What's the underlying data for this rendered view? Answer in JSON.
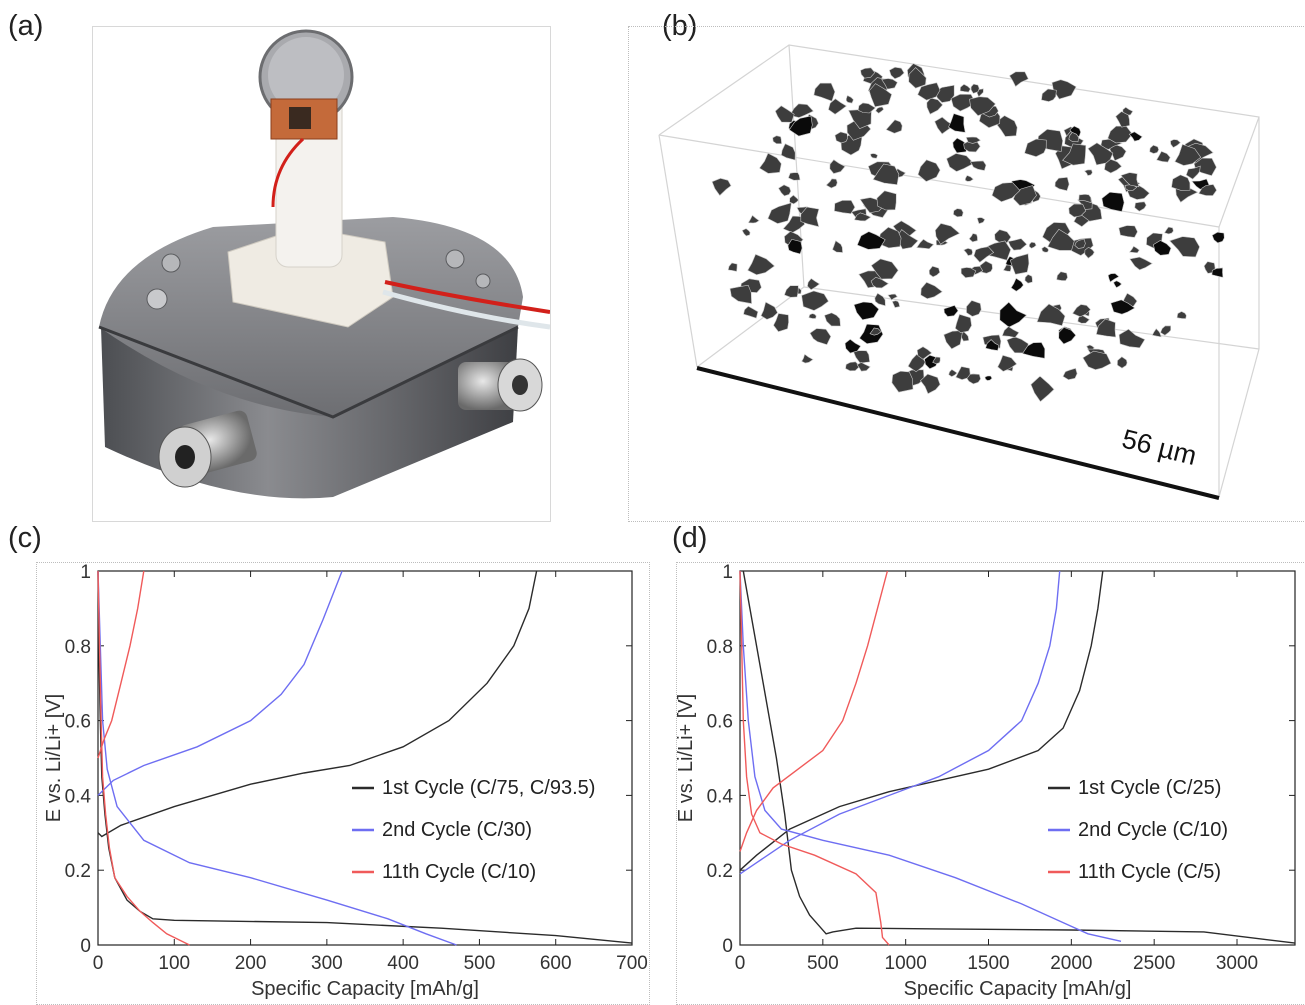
{
  "panels": {
    "a": {
      "label": "(a)"
    },
    "b": {
      "label": "(b)",
      "scale_text": "56 µm"
    },
    "c": {
      "label": "(c)"
    },
    "d": {
      "label": "(d)"
    }
  },
  "colors": {
    "black": "#2b2b2b",
    "blue": "#6e6ef2",
    "red": "#f05a5a"
  },
  "chart_data": [
    {
      "panel": "c",
      "type": "line",
      "xlabel": "Specific Capacity [mAh/g]",
      "ylabel": "E vs. Li/Li+ [V]",
      "xlim": [
        0,
        700
      ],
      "ylim": [
        0,
        1
      ],
      "xticks": [
        "0",
        "100",
        "200",
        "300",
        "400",
        "500",
        "600",
        "700"
      ],
      "yticks": [
        "0",
        "0.2",
        "0.4",
        "0.6",
        "0.8",
        "1"
      ],
      "legend_position": "center-right",
      "series": [
        {
          "name": "1st Cycle (C/75, C/93.5)",
          "color": "#2b2b2b",
          "discharge": [
            [
              0,
              1
            ],
            [
              1,
              0.8
            ],
            [
              3,
              0.6
            ],
            [
              5,
              0.45
            ],
            [
              9,
              0.35
            ],
            [
              14,
              0.26
            ],
            [
              22,
              0.18
            ],
            [
              38,
              0.12
            ],
            [
              55,
              0.09
            ],
            [
              72,
              0.07
            ],
            [
              100,
              0.066
            ],
            [
              300,
              0.06
            ],
            [
              450,
              0.045
            ],
            [
              600,
              0.025
            ],
            [
              700,
              0.005
            ]
          ],
          "charge": [
            [
              0,
              0.3
            ],
            [
              5,
              0.29
            ],
            [
              30,
              0.32
            ],
            [
              100,
              0.37
            ],
            [
              200,
              0.43
            ],
            [
              270,
              0.46
            ],
            [
              330,
              0.48
            ],
            [
              400,
              0.53
            ],
            [
              460,
              0.6
            ],
            [
              510,
              0.7
            ],
            [
              545,
              0.8
            ],
            [
              565,
              0.9
            ],
            [
              575,
              1.0
            ]
          ]
        },
        {
          "name": "2nd Cycle (C/30)",
          "color": "#6e6ef2",
          "discharge": [
            [
              0,
              1
            ],
            [
              3,
              0.8
            ],
            [
              6,
              0.6
            ],
            [
              12,
              0.47
            ],
            [
              25,
              0.37
            ],
            [
              60,
              0.28
            ],
            [
              120,
              0.22
            ],
            [
              200,
              0.18
            ],
            [
              300,
              0.12
            ],
            [
              380,
              0.07
            ],
            [
              430,
              0.03
            ],
            [
              470,
              0
            ]
          ],
          "charge": [
            [
              0,
              0.4
            ],
            [
              20,
              0.44
            ],
            [
              60,
              0.48
            ],
            [
              130,
              0.53
            ],
            [
              200,
              0.6
            ],
            [
              240,
              0.67
            ],
            [
              270,
              0.75
            ],
            [
              295,
              0.87
            ],
            [
              320,
              1.0
            ]
          ]
        },
        {
          "name": "11th Cycle (C/10)",
          "color": "#f05a5a",
          "discharge": [
            [
              0,
              1
            ],
            [
              2,
              0.8
            ],
            [
              4,
              0.6
            ],
            [
              6,
              0.45
            ],
            [
              10,
              0.35
            ],
            [
              15,
              0.26
            ],
            [
              22,
              0.18
            ],
            [
              38,
              0.13
            ],
            [
              55,
              0.09
            ],
            [
              72,
              0.06
            ],
            [
              90,
              0.03
            ],
            [
              110,
              0.01
            ],
            [
              120,
              0
            ]
          ],
          "charge": [
            [
              0,
              0.5
            ],
            [
              8,
              0.55
            ],
            [
              18,
              0.6
            ],
            [
              30,
              0.7
            ],
            [
              42,
              0.8
            ],
            [
              52,
              0.9
            ],
            [
              60,
              1.0
            ]
          ]
        }
      ]
    },
    {
      "panel": "d",
      "type": "line",
      "xlabel": "Specific Capacity [mAh/g]",
      "ylabel": "E vs. Li/Li+ [V]",
      "xlim": [
        0,
        3350
      ],
      "ylim": [
        0,
        1
      ],
      "xticks": [
        "0",
        "500",
        "1000",
        "1500",
        "2000",
        "2500",
        "3000"
      ],
      "yticks": [
        "0",
        "0.2",
        "0.4",
        "0.6",
        "0.8",
        "1"
      ],
      "legend_position": "center-right",
      "series": [
        {
          "name": "1st Cycle (C/25)",
          "color": "#2b2b2b",
          "discharge": [
            [
              20,
              1
            ],
            [
              60,
              0.9
            ],
            [
              140,
              0.7
            ],
            [
              220,
              0.5
            ],
            [
              270,
              0.35
            ],
            [
              310,
              0.2
            ],
            [
              360,
              0.13
            ],
            [
              420,
              0.08
            ],
            [
              480,
              0.05
            ],
            [
              520,
              0.03
            ],
            [
              560,
              0.035
            ],
            [
              700,
              0.045
            ],
            [
              1200,
              0.043
            ],
            [
              2000,
              0.04
            ],
            [
              2800,
              0.035
            ],
            [
              3350,
              0.005
            ]
          ],
          "charge": [
            [
              0,
              0.2
            ],
            [
              100,
              0.24
            ],
            [
              300,
              0.31
            ],
            [
              600,
              0.37
            ],
            [
              900,
              0.41
            ],
            [
              1200,
              0.44
            ],
            [
              1500,
              0.47
            ],
            [
              1800,
              0.52
            ],
            [
              1950,
              0.58
            ],
            [
              2050,
              0.68
            ],
            [
              2120,
              0.8
            ],
            [
              2160,
              0.9
            ],
            [
              2190,
              1.0
            ]
          ]
        },
        {
          "name": "2nd Cycle (C/10)",
          "color": "#6e6ef2",
          "discharge": [
            [
              0,
              1
            ],
            [
              20,
              0.8
            ],
            [
              50,
              0.6
            ],
            [
              90,
              0.45
            ],
            [
              150,
              0.36
            ],
            [
              250,
              0.31
            ],
            [
              500,
              0.28
            ],
            [
              900,
              0.24
            ],
            [
              1300,
              0.18
            ],
            [
              1700,
              0.11
            ],
            [
              1950,
              0.06
            ],
            [
              2100,
              0.03
            ],
            [
              2300,
              0.01
            ]
          ],
          "charge": [
            [
              0,
              0.19
            ],
            [
              100,
              0.22
            ],
            [
              300,
              0.28
            ],
            [
              600,
              0.35
            ],
            [
              900,
              0.4
            ],
            [
              1200,
              0.45
            ],
            [
              1500,
              0.52
            ],
            [
              1700,
              0.6
            ],
            [
              1800,
              0.7
            ],
            [
              1870,
              0.8
            ],
            [
              1910,
              0.9
            ],
            [
              1930,
              1.0
            ]
          ]
        },
        {
          "name": "11th Cycle (C/5)",
          "color": "#f05a5a",
          "discharge": [
            [
              0,
              1
            ],
            [
              10,
              0.8
            ],
            [
              20,
              0.6
            ],
            [
              40,
              0.45
            ],
            [
              70,
              0.35
            ],
            [
              120,
              0.3
            ],
            [
              250,
              0.27
            ],
            [
              450,
              0.24
            ],
            [
              700,
              0.19
            ],
            [
              820,
              0.14
            ],
            [
              850,
              0.06
            ],
            [
              860,
              0.02
            ],
            [
              900,
              0
            ]
          ],
          "charge": [
            [
              0,
              0.25
            ],
            [
              40,
              0.3
            ],
            [
              100,
              0.36
            ],
            [
              200,
              0.42
            ],
            [
              350,
              0.47
            ],
            [
              500,
              0.52
            ],
            [
              620,
              0.6
            ],
            [
              700,
              0.7
            ],
            [
              770,
              0.8
            ],
            [
              830,
              0.9
            ],
            [
              890,
              1.0
            ]
          ]
        }
      ]
    }
  ]
}
